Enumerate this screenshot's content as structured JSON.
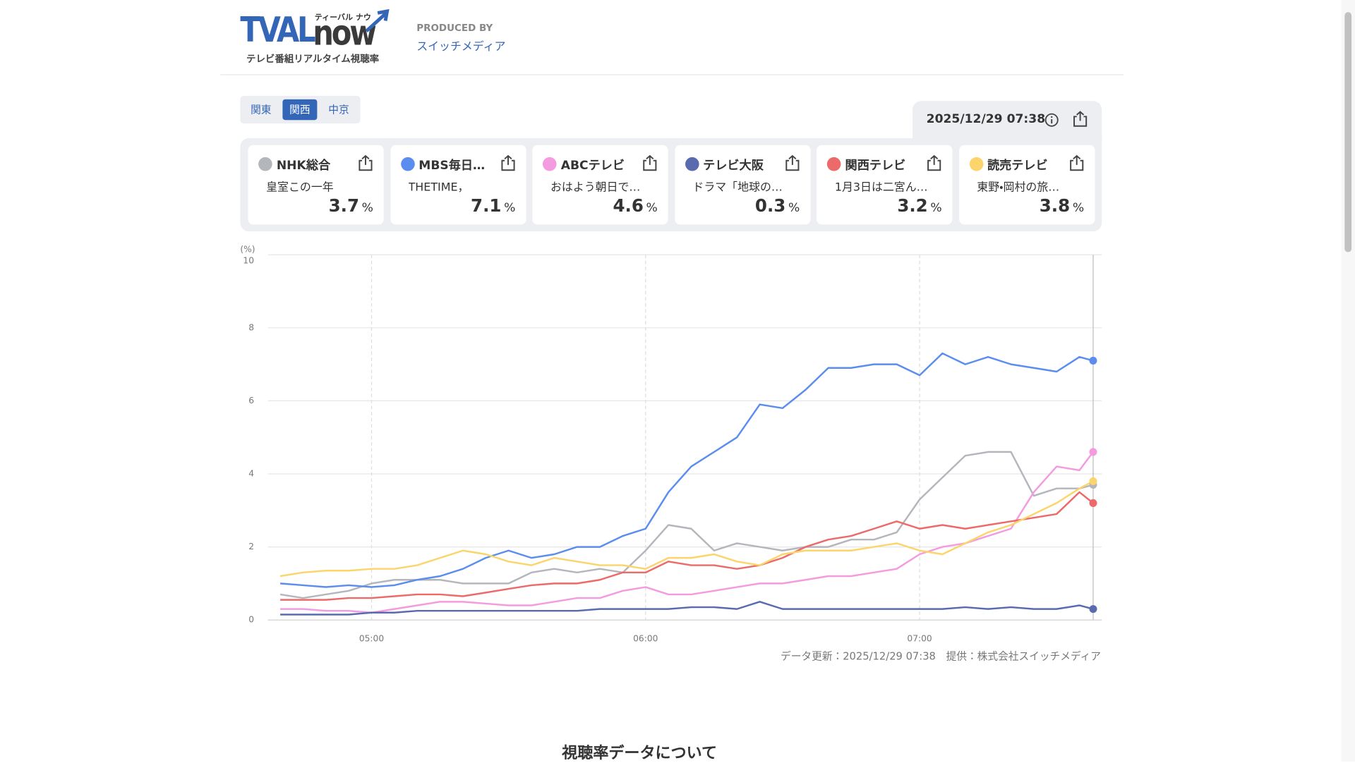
{
  "header": {
    "logo_main": "TVAL",
    "logo_sub": "now",
    "logo_kana": "ティーバル ナウ",
    "tagline": "テレビ番組リアルタイム視聴率",
    "produced_by": "PRODUCED BY",
    "producer": "スイッチメディア"
  },
  "region_tabs": [
    "関東",
    "関西",
    "中京"
  ],
  "active_tab": 1,
  "updated": "2025/12/29 07:38",
  "programs": [
    "皇室この一年",
    "THETIME，",
    "おはよう朝日で…",
    "ドラマ「地球の…",
    "1月3日は二宮ん…",
    "東野・岡村の旅…"
  ],
  "rating_unit": "%",
  "chart_data": {
    "type": "line",
    "y_unit_label": "(%)",
    "x": [
      "04:40",
      "04:45",
      "04:50",
      "04:55",
      "05:00",
      "05:05",
      "05:10",
      "05:15",
      "05:20",
      "05:25",
      "05:30",
      "05:35",
      "05:40",
      "05:45",
      "05:50",
      "05:55",
      "06:00",
      "06:05",
      "06:10",
      "06:15",
      "06:20",
      "06:25",
      "06:30",
      "06:35",
      "06:40",
      "06:45",
      "06:50",
      "06:55",
      "07:00",
      "07:05",
      "07:10",
      "07:15",
      "07:20",
      "07:25",
      "07:30",
      "07:35",
      "07:38"
    ],
    "xlim": [
      "04:39",
      "07:38"
    ],
    "xticks": [
      "05:00",
      "06:00",
      "07:00"
    ],
    "ylim": [
      0,
      10
    ],
    "yticks": [
      0,
      2,
      4,
      6,
      8,
      10
    ],
    "grid": true,
    "series": [
      {
        "name": "NHK総合",
        "color": "#b3b6bb",
        "values": [
          0.7,
          0.6,
          0.7,
          0.8,
          1.0,
          1.1,
          1.1,
          1.1,
          1.0,
          1.0,
          1.0,
          1.3,
          1.4,
          1.3,
          1.4,
          1.3,
          1.9,
          2.6,
          2.5,
          1.9,
          2.1,
          2.0,
          1.9,
          2.0,
          2.0,
          2.2,
          2.2,
          2.4,
          3.3,
          3.9,
          4.5,
          4.6,
          4.6,
          3.4,
          3.6,
          3.6,
          3.7
        ]
      },
      {
        "name": "MBS毎日…",
        "color": "#5b8def",
        "values": [
          1.0,
          0.95,
          0.9,
          0.95,
          0.9,
          0.95,
          1.1,
          1.2,
          1.4,
          1.7,
          1.9,
          1.7,
          1.8,
          2.0,
          2.0,
          2.3,
          2.5,
          3.5,
          4.2,
          4.6,
          5.0,
          5.9,
          5.8,
          6.3,
          6.9,
          6.9,
          7.0,
          7.0,
          6.7,
          7.3,
          7.0,
          7.2,
          7.0,
          6.9,
          6.8,
          7.2,
          7.1
        ]
      },
      {
        "name": "ABCテレビ",
        "color": "#f49be0",
        "values": [
          0.3,
          0.3,
          0.25,
          0.25,
          0.2,
          0.3,
          0.4,
          0.5,
          0.5,
          0.45,
          0.4,
          0.4,
          0.5,
          0.6,
          0.6,
          0.8,
          0.9,
          0.7,
          0.7,
          0.8,
          0.9,
          1.0,
          1.0,
          1.1,
          1.2,
          1.2,
          1.3,
          1.4,
          1.8,
          2.0,
          2.1,
          2.3,
          2.5,
          3.5,
          4.2,
          4.1,
          4.6
        ]
      },
      {
        "name": "テレビ大阪",
        "color": "#5a6aae",
        "values": [
          0.15,
          0.15,
          0.15,
          0.15,
          0.2,
          0.2,
          0.25,
          0.25,
          0.25,
          0.25,
          0.25,
          0.25,
          0.25,
          0.25,
          0.3,
          0.3,
          0.3,
          0.3,
          0.35,
          0.35,
          0.3,
          0.5,
          0.3,
          0.3,
          0.3,
          0.3,
          0.3,
          0.3,
          0.3,
          0.3,
          0.35,
          0.3,
          0.35,
          0.3,
          0.3,
          0.4,
          0.3
        ]
      },
      {
        "name": "関西テレビ",
        "color": "#ec6a6a",
        "values": [
          0.55,
          0.55,
          0.55,
          0.6,
          0.6,
          0.65,
          0.7,
          0.7,
          0.65,
          0.75,
          0.85,
          0.95,
          1.0,
          1.0,
          1.1,
          1.3,
          1.3,
          1.6,
          1.5,
          1.5,
          1.4,
          1.5,
          1.7,
          2.0,
          2.2,
          2.3,
          2.5,
          2.7,
          2.5,
          2.6,
          2.5,
          2.6,
          2.7,
          2.8,
          2.9,
          3.5,
          3.2
        ]
      },
      {
        "name": "読売テレビ",
        "color": "#fbd56b",
        "values": [
          1.2,
          1.3,
          1.35,
          1.35,
          1.4,
          1.4,
          1.5,
          1.7,
          1.9,
          1.8,
          1.6,
          1.5,
          1.7,
          1.6,
          1.5,
          1.5,
          1.4,
          1.7,
          1.7,
          1.8,
          1.6,
          1.5,
          1.8,
          1.9,
          1.9,
          1.9,
          2.0,
          2.1,
          1.9,
          1.8,
          2.1,
          2.4,
          2.6,
          2.9,
          3.2,
          3.6,
          3.8
        ]
      }
    ]
  },
  "footer": "データ更新：2025/12/29 07:38　提供：株式会社スイッチメディア",
  "section_heading": "視聴率データについて"
}
